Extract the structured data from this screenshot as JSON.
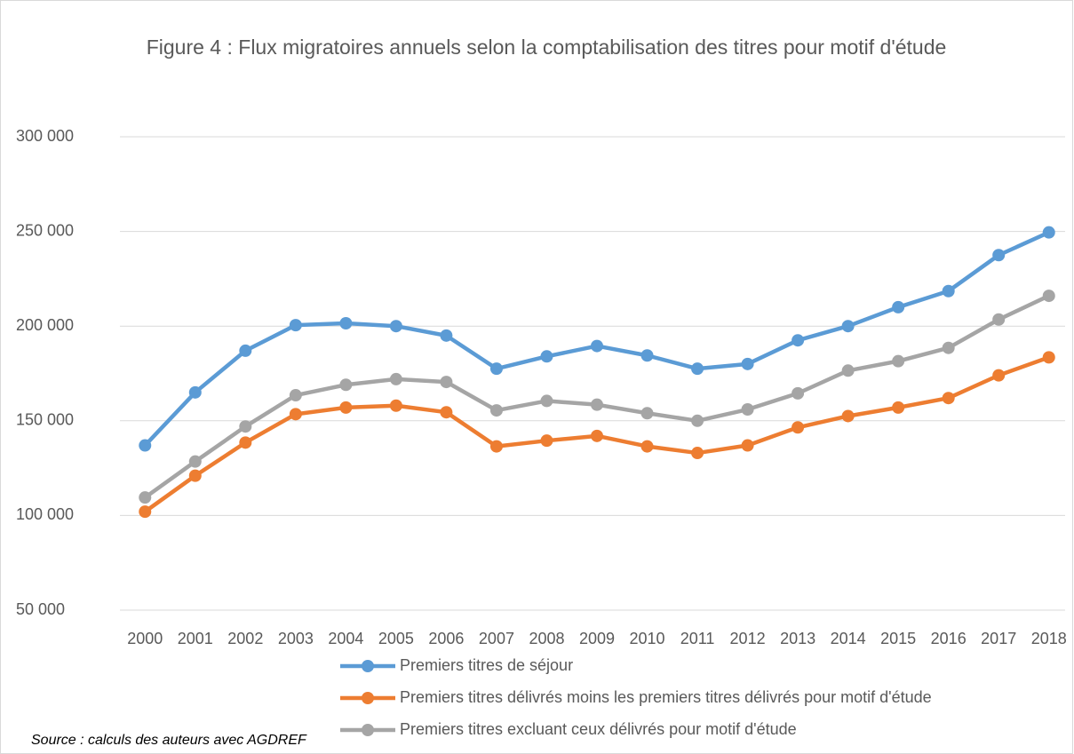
{
  "chart_data": {
    "type": "line",
    "title": "Figure 4 : Flux migratoires annuels selon la comptabilisation des titres pour motif d'étude",
    "source": "Source : calculs des auteurs avec AGDREF",
    "categories": [
      "2000",
      "2001",
      "2002",
      "2003",
      "2004",
      "2005",
      "2006",
      "2007",
      "2008",
      "2009",
      "2010",
      "2011",
      "2012",
      "2013",
      "2014",
      "2015",
      "2016",
      "2017",
      "2018"
    ],
    "series": [
      {
        "name": "Premiers titres de séjour",
        "color": "#5b9bd5",
        "values": [
          137000,
          165000,
          187000,
          200500,
          201500,
          200000,
          195000,
          177500,
          184000,
          189500,
          184500,
          177500,
          180000,
          192500,
          200000,
          210000,
          218500,
          237500,
          249500
        ]
      },
      {
        "name": "Premiers titres délivrés moins les premiers titres délivrés pour motif d'étude",
        "color": "#ed7d31",
        "values": [
          102000,
          121000,
          138500,
          153500,
          157000,
          158000,
          154500,
          136500,
          139500,
          142000,
          136500,
          133000,
          137000,
          146500,
          152500,
          157000,
          162000,
          174000,
          183500
        ]
      },
      {
        "name": "Premiers titres excluant ceux délivrés pour motif d'étude",
        "color": "#a5a5a5",
        "values": [
          109500,
          128500,
          147000,
          163500,
          169000,
          172000,
          170500,
          155500,
          160500,
          158500,
          154000,
          150000,
          156000,
          164500,
          176500,
          181500,
          188500,
          203500,
          216000
        ]
      }
    ],
    "ylim": [
      50000,
      300000
    ],
    "yticks": [
      {
        "value": 50000,
        "label": "50 000"
      },
      {
        "value": 100000,
        "label": "100 000"
      },
      {
        "value": 150000,
        "label": "150 000"
      },
      {
        "value": 200000,
        "label": "200 000"
      },
      {
        "value": 250000,
        "label": "250 000"
      },
      {
        "value": 300000,
        "label": "300 000"
      }
    ],
    "grid": true,
    "legend": "bottom"
  }
}
